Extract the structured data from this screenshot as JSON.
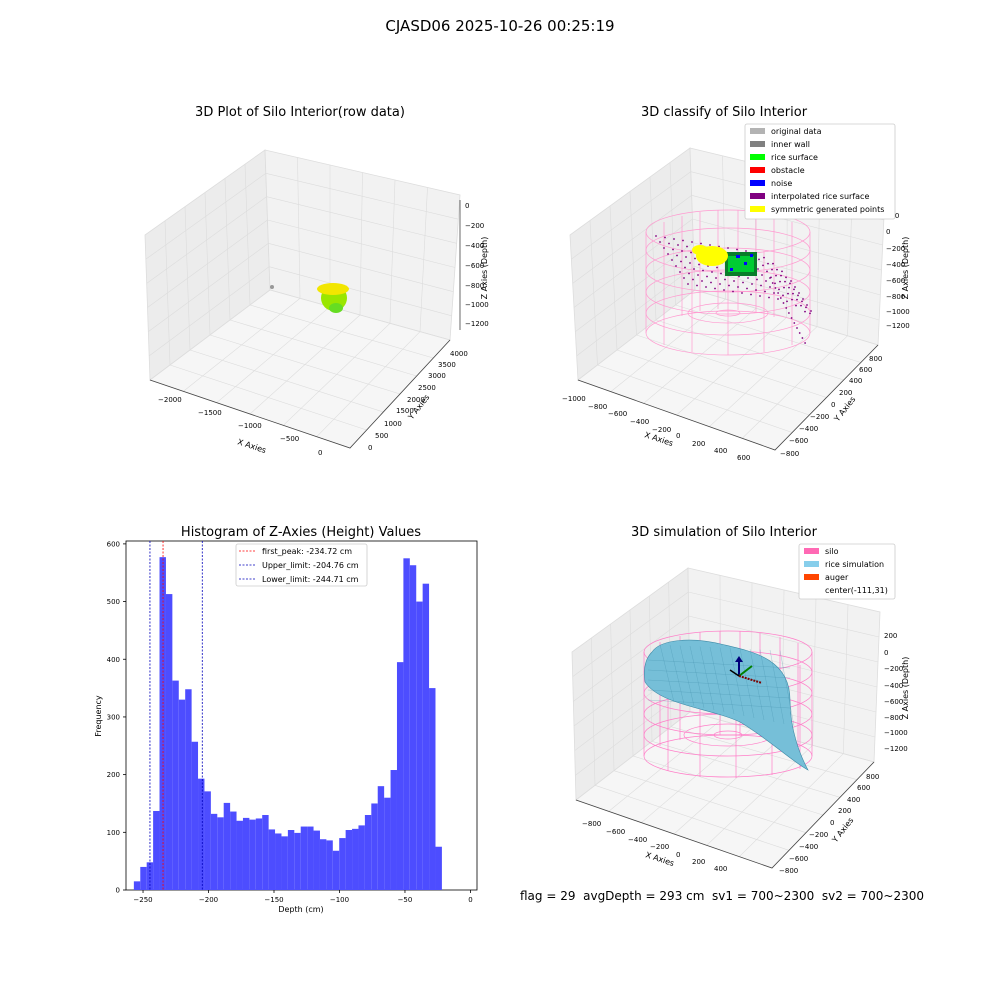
{
  "figure": {
    "suptitle": "CJASD06 2025-10-26 00:25:19",
    "footer": "flag = 29  avgDepth = 293 cm  sv1 = 700~2300  sv2 = 700~2300"
  },
  "colors": {
    "original_data": "#b3b3b3",
    "inner_wall": "#808080",
    "rice_surface": "#00ff00",
    "obstacle": "#ff0000",
    "noise": "#0000ff",
    "interpolated_rice_surface": "#800080",
    "symmetric_generated_points": "#ffff00",
    "silo": "#ff69b4",
    "rice_simulation": "#87ceeb",
    "auger": "#ff4500",
    "histogram_bar": "#4d4dff",
    "first_peak_line": "#ff0000",
    "limit_line": "#0000bb"
  },
  "chart_data": [
    {
      "type": "scatter3d",
      "title": "3D Plot of Silo Interior(row data)",
      "xlabel": "X Axies",
      "ylabel": "Y Axies",
      "zlabel": "Z Axies (Depth)",
      "xticks": [
        "−2000",
        "−1500",
        "−1000",
        "−500",
        "0"
      ],
      "yticks": [
        "0",
        "500",
        "1000",
        "1500",
        "2000",
        "2500",
        "3000",
        "3500",
        "4000"
      ],
      "zticks": [
        "0",
        "−200",
        "−400",
        "−600",
        "−800",
        "−1000",
        "−1200"
      ]
    },
    {
      "type": "scatter3d",
      "title": "3D classify of Silo Interior",
      "xlabel": "X Axies",
      "ylabel": "Y Axies",
      "zlabel": "Z Axies (Depth)",
      "xticks": [
        "−1000",
        "−800",
        "−600",
        "−400",
        "−200",
        "0",
        "200",
        "400",
        "600"
      ],
      "yticks": [
        "−800",
        "−600",
        "−400",
        "−200",
        "0",
        "200",
        "400",
        "600",
        "800"
      ],
      "zticks": [
        "200",
        "0",
        "−200",
        "−400",
        "−600",
        "−800",
        "−1000",
        "−1200"
      ],
      "legend": [
        "original data",
        "inner wall",
        "rice surface",
        "obstacle",
        "noise",
        "interpolated rice surface",
        "symmetric generated points"
      ],
      "legend_position": "top-right"
    },
    {
      "type": "bar",
      "title": "Histogram of Z-Axies (Height) Values",
      "xlabel": "Depth (cm)",
      "ylabel": "Frequency",
      "xlim": [
        -263,
        5
      ],
      "ylim": [
        0,
        605
      ],
      "xticks": [
        -250,
        -200,
        -150,
        -100,
        -50,
        0
      ],
      "xtick_labels": [
        "−250",
        "−200",
        "−150",
        "−100",
        "−50",
        "0"
      ],
      "yticks": [
        0,
        100,
        200,
        300,
        400,
        500,
        600
      ],
      "bins": {
        "start": -257,
        "width": 4.9
      },
      "values": [
        15,
        40,
        48,
        137,
        577,
        513,
        363,
        330,
        348,
        257,
        193,
        171,
        132,
        126,
        151,
        136,
        120,
        125,
        122,
        124,
        130,
        105,
        98,
        93,
        104,
        99,
        110,
        110,
        103,
        88,
        86,
        68,
        90,
        104,
        106,
        112,
        130,
        150,
        180,
        160,
        208,
        395,
        575,
        563,
        500,
        531,
        350,
        75
      ],
      "vlines": [
        {
          "label": "first_peak: -234.72 cm",
          "x": -234.72,
          "color": "#ff0000"
        },
        {
          "label": "Upper_limit: -204.76 cm",
          "x": -204.76,
          "color": "#0000bb"
        },
        {
          "label": "Lower_limit: -244.71 cm",
          "x": -244.71,
          "color": "#0000bb"
        }
      ],
      "legend_position": "top-center"
    },
    {
      "type": "surface3d",
      "title": "3D simulation of Silo Interior",
      "xlabel": "X Axies",
      "ylabel": "Y Axies",
      "zlabel": "Z Axies (Depth)",
      "xticks": [
        "−800",
        "−600",
        "−400",
        "−200",
        "0",
        "200",
        "400"
      ],
      "yticks": [
        "−800",
        "−600",
        "−400",
        "−200",
        "0",
        "200",
        "400",
        "600",
        "800"
      ],
      "zticks": [
        "200",
        "0",
        "−200",
        "−400",
        "−600",
        "−800",
        "−1000",
        "−1200"
      ],
      "legend": [
        "silo",
        "rice simulation",
        "auger",
        "center(-111,31)"
      ],
      "legend_position": "top-right"
    }
  ]
}
